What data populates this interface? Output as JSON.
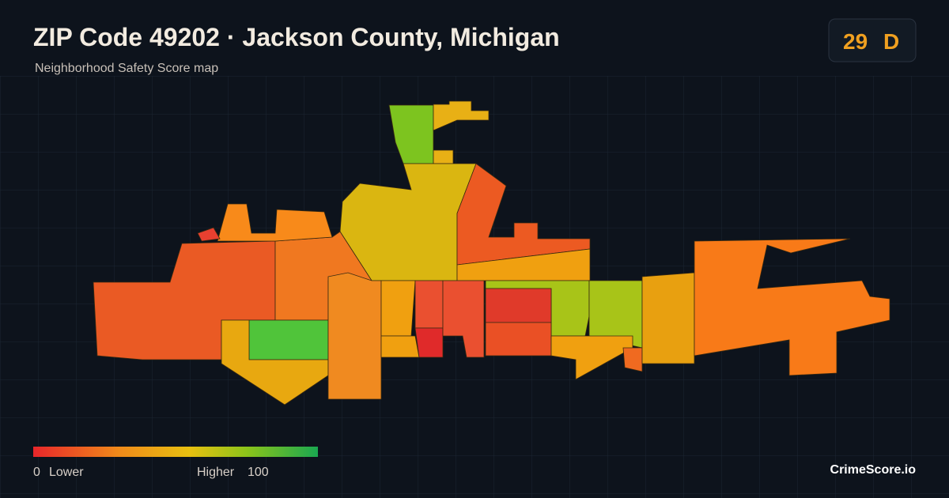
{
  "header": {
    "title": "ZIP Code 49202 · Jackson County, Michigan",
    "subtitle": "Neighborhood Safety Score map"
  },
  "score": {
    "value": "29",
    "grade": "D"
  },
  "legend": {
    "min": "0",
    "min_label": "Lower",
    "max_label": "Higher",
    "max": "100"
  },
  "brand": "CrimeScore.io"
}
